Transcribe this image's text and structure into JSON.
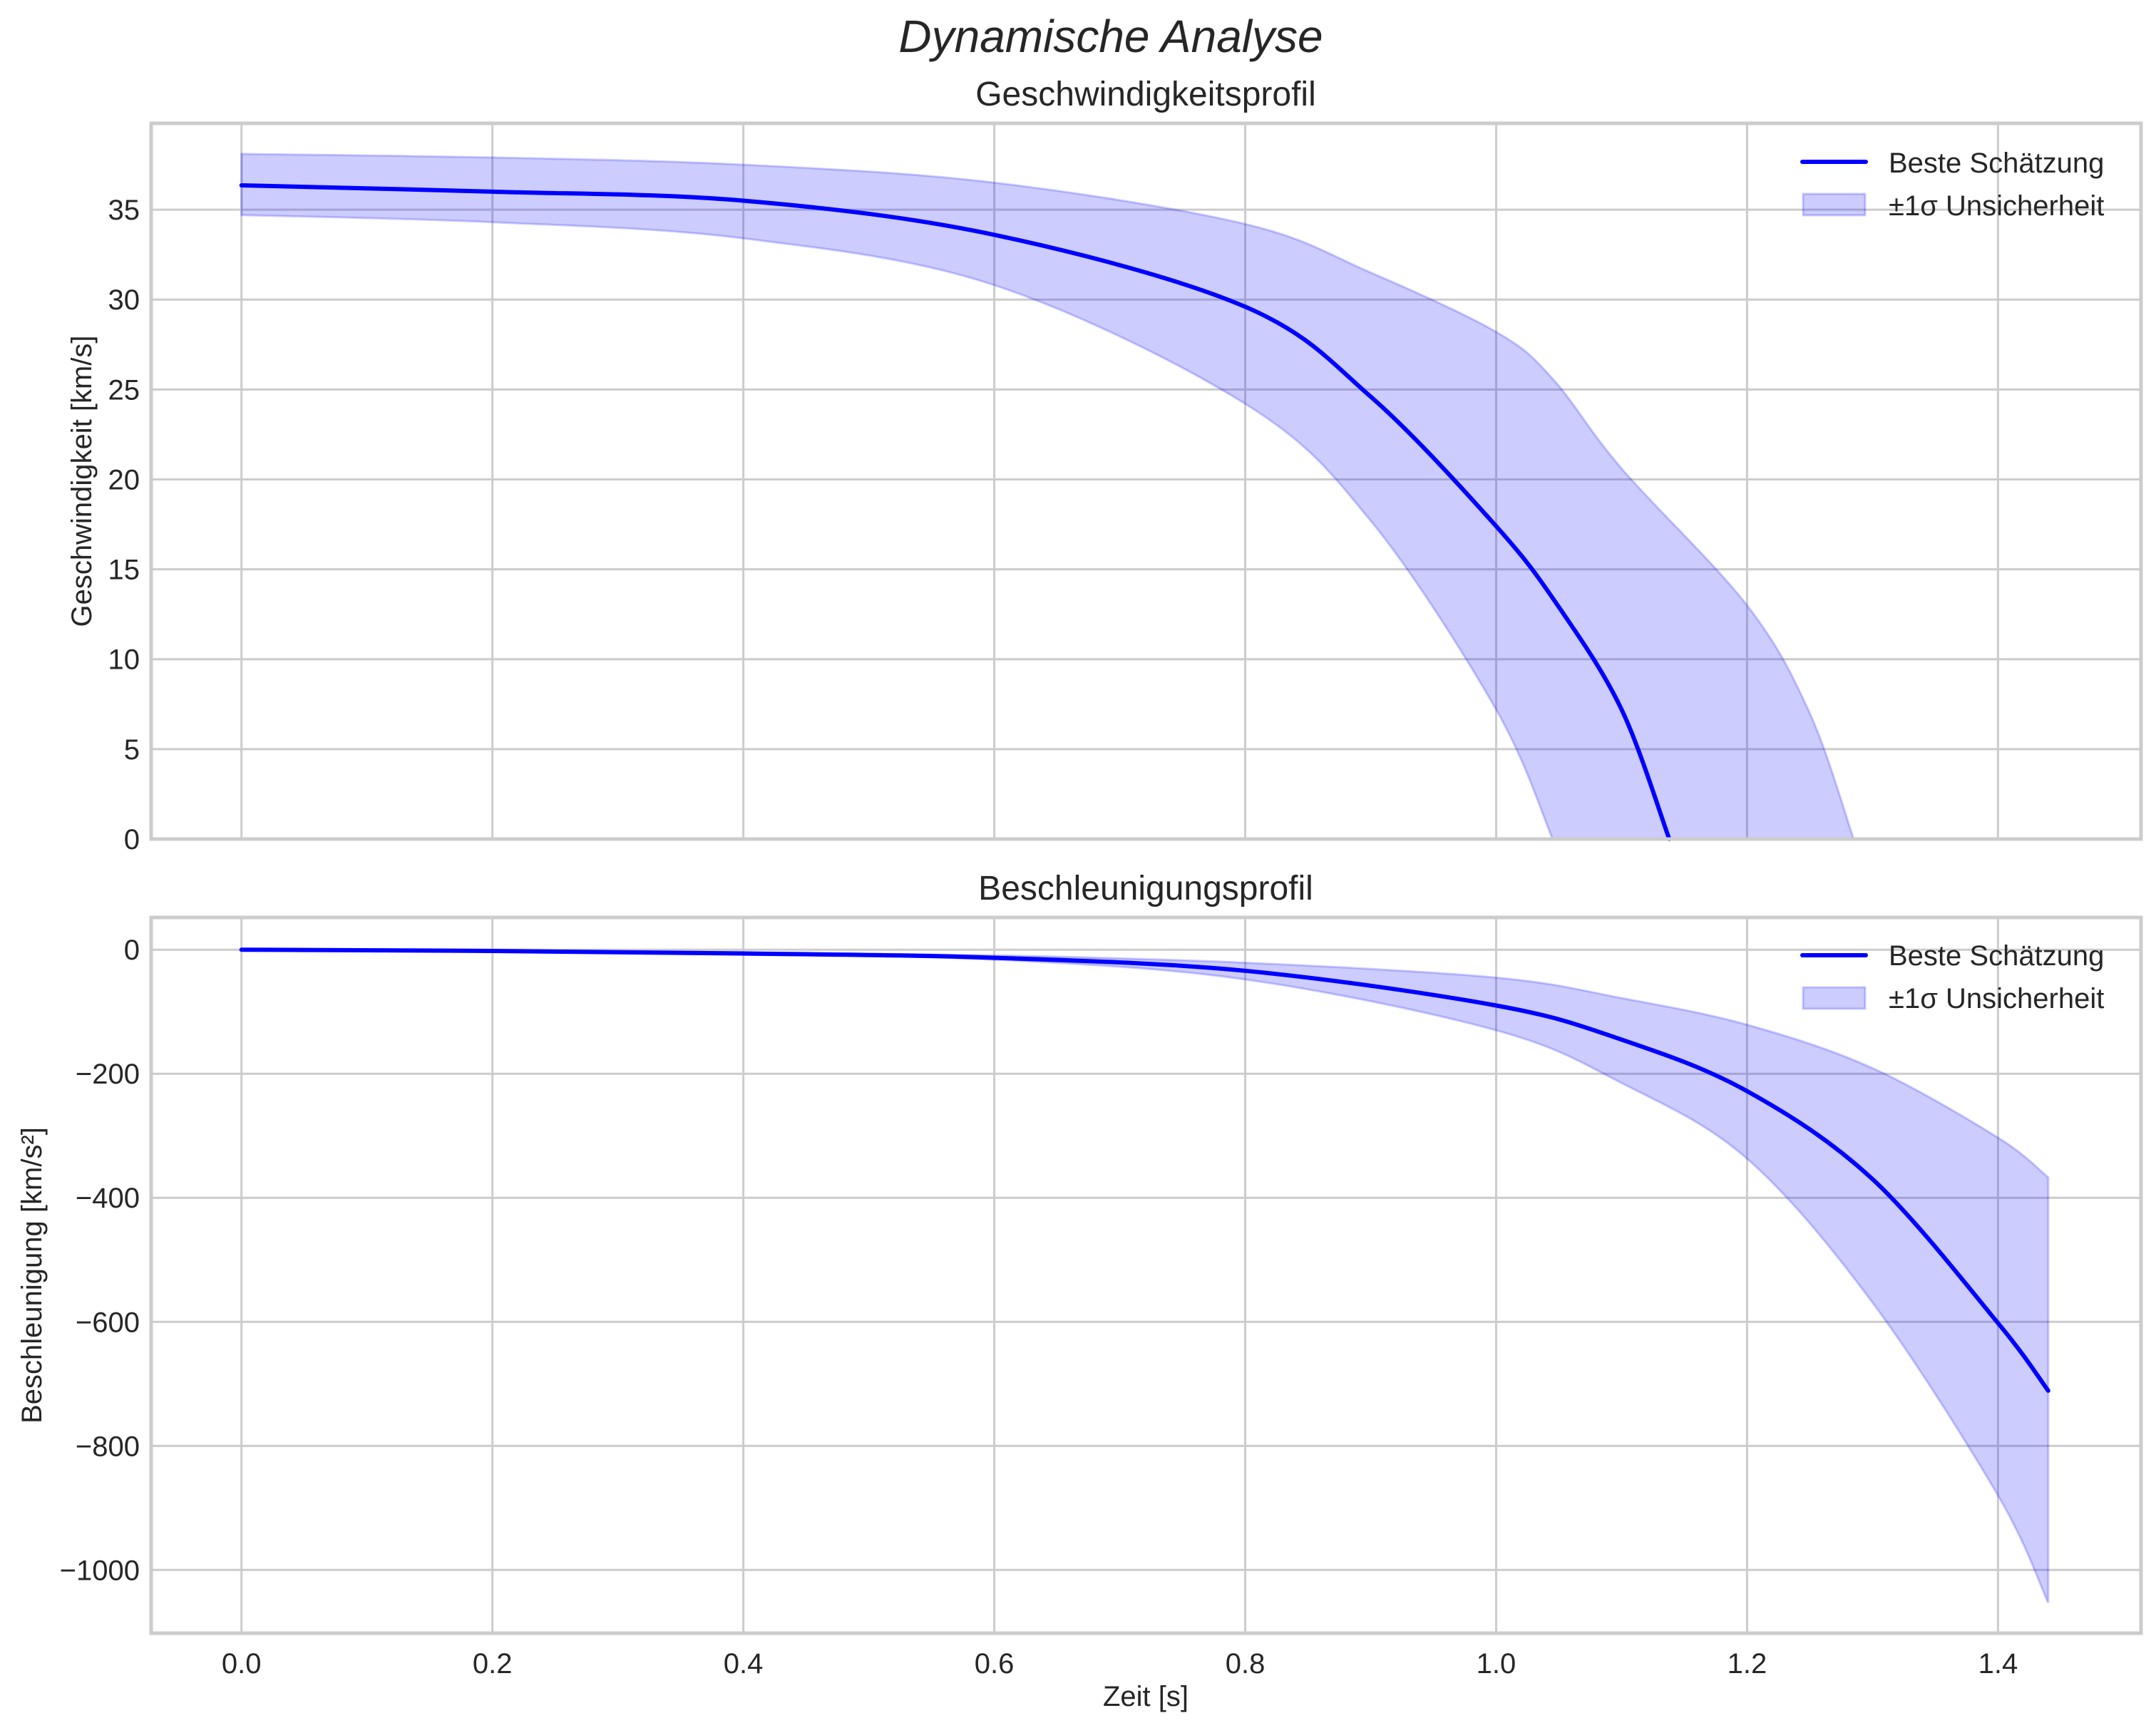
{
  "figure": {
    "title": "Dynamische Analyse",
    "xlabel": "Zeit [s]",
    "x_ticks": [
      "0.0",
      "0.2",
      "0.4",
      "0.6",
      "0.8",
      "1.0",
      "1.2",
      "1.4"
    ]
  },
  "colors": {
    "line": "#0000ff",
    "band": "#ccccff",
    "grid": "#cccccc",
    "text": "#262626"
  },
  "chart_data": [
    {
      "type": "line",
      "title": "Geschwindigkeitsprofil",
      "xlabel": "",
      "ylabel": "Geschwindigkeit [km/s]",
      "xlim": [
        -0.072,
        1.514
      ],
      "ylim": [
        0,
        39.8
      ],
      "grid": true,
      "legend_position": "upper right",
      "legend": [
        "Beste Schätzung",
        "±1σ Unsicherheit"
      ],
      "y_ticks": [
        "0",
        "5",
        "10",
        "15",
        "20",
        "25",
        "30",
        "35"
      ],
      "x": [
        0.0,
        0.2,
        0.4,
        0.6,
        0.8,
        0.9,
        1.0,
        1.05,
        1.1,
        1.138
      ],
      "series": [
        {
          "name": "Beste Schätzung",
          "values": [
            36.35,
            36.0,
            35.5,
            33.6,
            29.6,
            24.6,
            17.4,
            12.9,
            7.2,
            0.0
          ]
        }
      ],
      "band": {
        "name": "±1σ Unsicherheit",
        "x": [
          0.0,
          0.2,
          0.4,
          0.6,
          0.8,
          0.9,
          1.0,
          1.045,
          1.1,
          1.2,
          1.25,
          1.285
        ],
        "upper": [
          38.1,
          37.9,
          37.5,
          36.5,
          34.2,
          31.5,
          28.2,
          25.6,
          20.6,
          13.0,
          7.0,
          0.0
        ],
        "lower": [
          34.7,
          34.3,
          33.4,
          30.8,
          24.2,
          17.7,
          7.2,
          0.0,
          null,
          null,
          null,
          null
        ]
      }
    },
    {
      "type": "line",
      "title": "Beschleunigungsprofil",
      "xlabel": "Zeit [s]",
      "ylabel": "Beschleunigung [km/s²]",
      "xlim": [
        -0.072,
        1.514
      ],
      "ylim": [
        -1102,
        52
      ],
      "grid": true,
      "legend_position": "upper right",
      "legend": [
        "Beste Schätzung",
        "±1σ Unsicherheit"
      ],
      "y_ticks": [
        "0",
        "−200",
        "−400",
        "−600",
        "−800",
        "−1000"
      ],
      "x": [
        0.0,
        0.2,
        0.4,
        0.6,
        0.8,
        1.0,
        1.1,
        1.2,
        1.3,
        1.4,
        1.44
      ],
      "series": [
        {
          "name": "Beste Schätzung",
          "values": [
            0,
            -2,
            -6,
            -13,
            -34,
            -90,
            -145,
            -228,
            -370,
            -602,
            -711
          ]
        }
      ],
      "band": {
        "name": "±1σ Unsicherheit",
        "x": [
          0.0,
          0.2,
          0.4,
          0.6,
          0.8,
          1.0,
          1.1,
          1.2,
          1.3,
          1.4,
          1.44
        ],
        "upper": [
          0,
          -1,
          -4,
          -9,
          -21,
          -45,
          -78,
          -121,
          -191,
          -303,
          -367
        ],
        "lower": [
          0,
          -3,
          -8,
          -16,
          -48,
          -130,
          -215,
          -337,
          -569,
          -880,
          -1053
        ]
      }
    }
  ]
}
